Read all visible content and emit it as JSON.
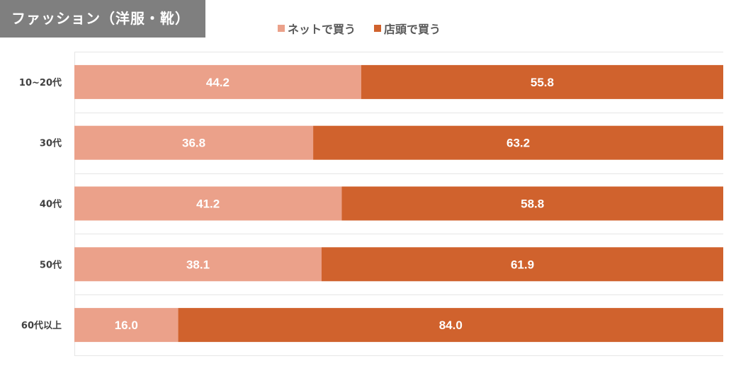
{
  "chart_data": {
    "type": "bar",
    "orientation": "horizontal",
    "stacked": true,
    "title": "ファッション（洋服・靴）",
    "categories": [
      "10~20代",
      "30代",
      "40代",
      "50代",
      "60代以上"
    ],
    "series": [
      {
        "name": "ネットで買う",
        "color": "#eba18a",
        "values": [
          44.2,
          36.8,
          41.2,
          38.1,
          16.0
        ]
      },
      {
        "name": "店頭で買う",
        "color": "#d0622d",
        "values": [
          55.8,
          63.2,
          58.8,
          61.9,
          84.0
        ]
      }
    ],
    "value_labels": [
      [
        "44.2",
        "36.8",
        "41.2",
        "38.1",
        "16.0"
      ],
      [
        "55.8",
        "63.2",
        "58.8",
        "61.9",
        "84.0"
      ]
    ],
    "xlim": [
      0,
      100
    ],
    "legend_position": "top",
    "grid": true
  }
}
